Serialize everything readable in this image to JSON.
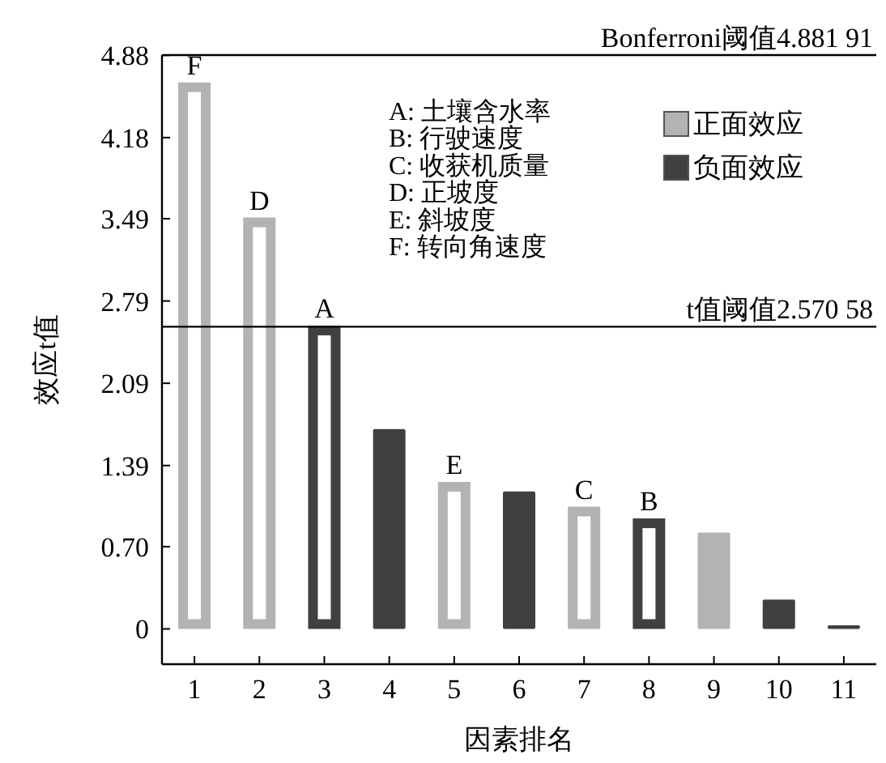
{
  "chart_data": {
    "type": "bar",
    "xlabel": "因素排名",
    "ylabel": "效应t值",
    "categories": [
      "1",
      "2",
      "3",
      "4",
      "5",
      "6",
      "7",
      "8",
      "9",
      "10",
      "11"
    ],
    "series": [
      {
        "name": "正面效应",
        "color": "#b3b3b3",
        "values": [
          4.65,
          3.5,
          null,
          null,
          1.25,
          null,
          1.04,
          null,
          0.82,
          null,
          null
        ]
      },
      {
        "name": "负面效应",
        "color": "#404040",
        "values": [
          null,
          null,
          2.58,
          1.7,
          null,
          1.17,
          null,
          0.94,
          null,
          0.25,
          0.03
        ]
      }
    ],
    "ylim": [
      -0.3,
      4.88191
    ],
    "yticks": [
      0,
      {
        "value": 0.7,
        "label": "0.70"
      },
      1.39,
      2.09,
      2.79,
      3.49,
      4.18,
      4.88
    ],
    "ref_lines": [
      {
        "axis": "y",
        "value": 4.88191,
        "label": "Bonferroni阈值4.881 91"
      },
      {
        "axis": "y",
        "value": 2.57058,
        "label": "t值阈值2.570 58"
      }
    ],
    "annotations": [
      "A: 土壤含水率",
      "B: 行驶速度",
      "C: 收获机质量",
      "D: 正坡度",
      "E: 斜坡度",
      "F: 转向角速度",
      {
        "text": "F",
        "x": "1",
        "y": 4.65
      },
      {
        "text": "D",
        "x": "2",
        "y": 3.5
      },
      {
        "text": "A",
        "x": "3",
        "y": 2.58
      },
      {
        "text": "E",
        "x": "5",
        "y": 1.25
      },
      {
        "text": "C",
        "x": "7",
        "y": 1.04
      },
      {
        "text": "B",
        "x": "8",
        "y": 0.94
      }
    ],
    "legend": "top right",
    "grid": false
  }
}
